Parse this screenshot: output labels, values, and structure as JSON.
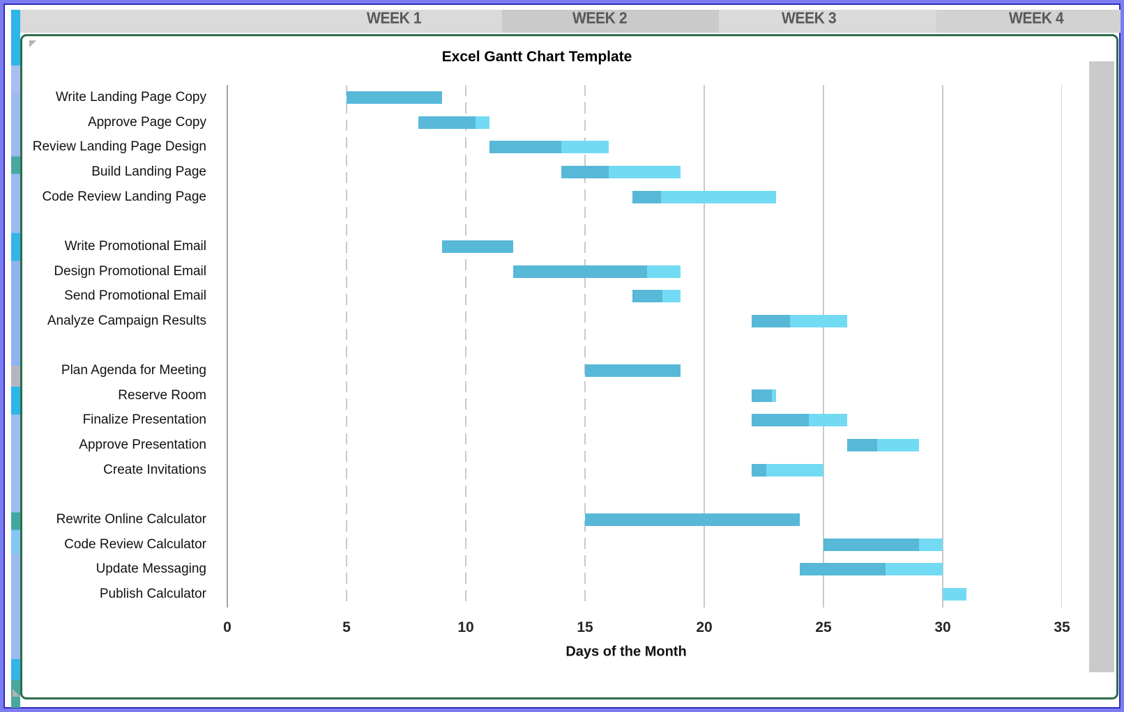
{
  "header": {
    "weeks": [
      {
        "label": "WEEK 1"
      },
      {
        "label": "WEEK 2"
      },
      {
        "label": "WEEK 3"
      },
      {
        "label": "WEEK 4"
      }
    ]
  },
  "chart_data": {
    "type": "bar",
    "variant": "gantt",
    "title": "Excel Gantt Chart Template",
    "xlabel": "Days of the Month",
    "xlim": [
      0,
      35
    ],
    "x_ticks": [
      0,
      5,
      10,
      15,
      20,
      25,
      30,
      35
    ],
    "grid": "vertical",
    "legend": "none",
    "bar_colors": {
      "completed": "#57b8d8",
      "remaining": "#73daf4"
    },
    "groups": [
      {
        "tasks": [
          {
            "name": "Write Landing Page Copy",
            "start": 5,
            "completed_until": 9,
            "end": 9
          },
          {
            "name": "Approve Page Copy",
            "start": 8,
            "completed_until": 10.4,
            "end": 11
          },
          {
            "name": "Review Landing Page Design",
            "start": 11,
            "completed_until": 14,
            "end": 16
          },
          {
            "name": "Build Landing Page",
            "start": 14,
            "completed_until": 16,
            "end": 19
          },
          {
            "name": "Code Review Landing Page",
            "start": 17,
            "completed_until": 18.2,
            "end": 23
          }
        ]
      },
      {
        "tasks": [
          {
            "name": "Write Promotional Email",
            "start": 9,
            "completed_until": 12,
            "end": 12
          },
          {
            "name": "Design Promotional Email",
            "start": 12,
            "completed_until": 17.6,
            "end": 19
          },
          {
            "name": "Send Promotional Email",
            "start": 17,
            "completed_until": 18.25,
            "end": 19
          },
          {
            "name": "Analyze Campaign Results",
            "start": 22,
            "completed_until": 23.6,
            "end": 26
          }
        ]
      },
      {
        "tasks": [
          {
            "name": "Plan Agenda for Meeting",
            "start": 15,
            "completed_until": 19,
            "end": 19
          },
          {
            "name": "Reserve Room",
            "start": 22,
            "completed_until": 22.85,
            "end": 23
          },
          {
            "name": "Finalize Presentation",
            "start": 22,
            "completed_until": 24.4,
            "end": 26
          },
          {
            "name": "Approve Presentation",
            "start": 26,
            "completed_until": 27.25,
            "end": 29
          },
          {
            "name": "Create Invitations",
            "start": 22,
            "completed_until": 22.6,
            "end": 25
          }
        ]
      },
      {
        "tasks": [
          {
            "name": "Rewrite Online Calculator",
            "start": 15,
            "completed_until": 24,
            "end": 24
          },
          {
            "name": "Code Review Calculator",
            "start": 25,
            "completed_until": 29,
            "end": 30
          },
          {
            "name": "Update Messaging",
            "start": 24,
            "completed_until": 27.6,
            "end": 30
          },
          {
            "name": "Publish Calculator",
            "start": 30,
            "completed_until": 30,
            "end": 31
          }
        ]
      }
    ]
  }
}
